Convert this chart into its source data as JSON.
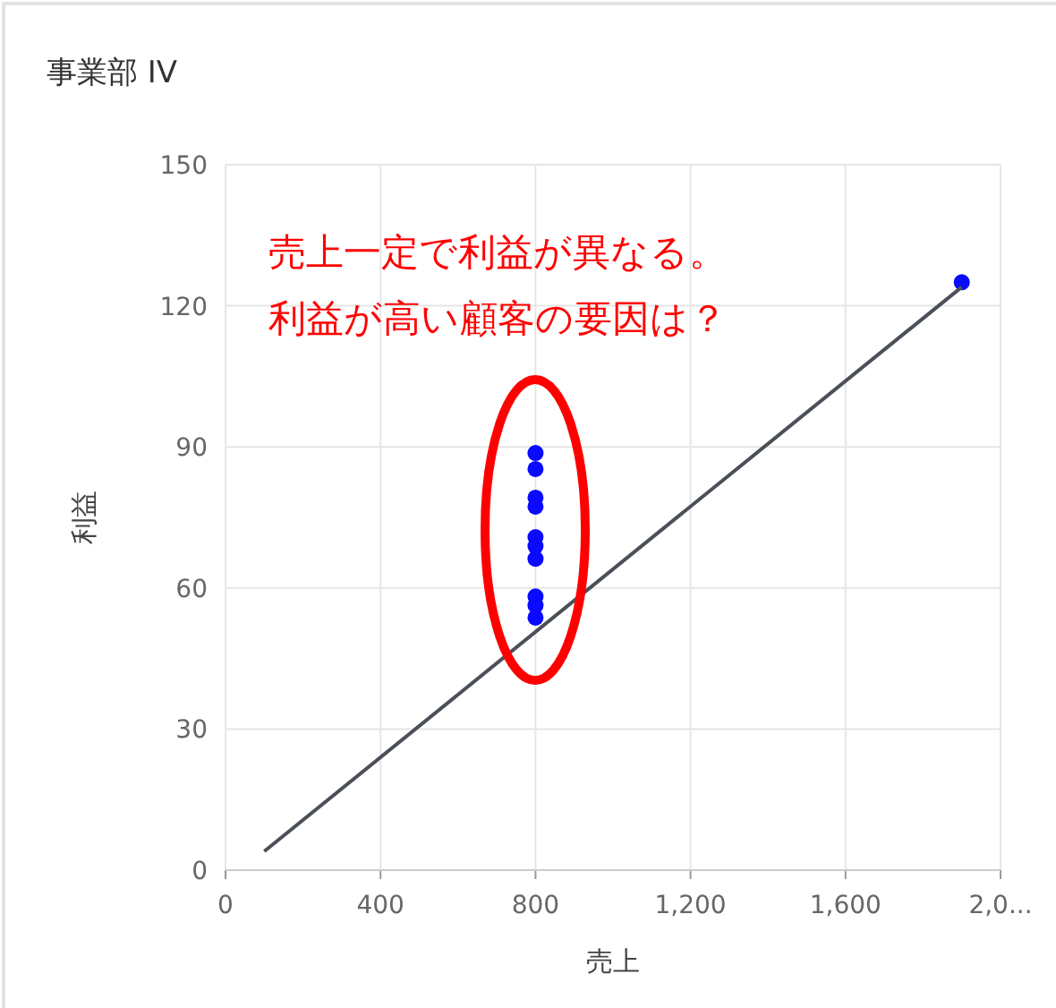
{
  "chart_data": {
    "type": "scatter",
    "title": "事業部 IV",
    "xlabel": "売上",
    "ylabel": "利益",
    "annotations": [
      "売上一定で利益が異なる。",
      "利益が高い顧客の要因は？"
    ],
    "series": [
      {
        "color": "#0a0aff",
        "x": [
          800,
          800,
          800,
          800,
          800,
          800,
          800,
          800,
          800,
          800,
          1900
        ],
        "values": [
          88.7,
          85.3,
          79.2,
          77.3,
          70.8,
          68.9,
          66.2,
          58.2,
          56.3,
          53.7,
          125
        ]
      },
      {
        "type": "line",
        "color": "#4b4f58",
        "marker": "none",
        "x": [
          100,
          1900
        ],
        "values": [
          4,
          124
        ]
      }
    ],
    "xlim": [
      0,
      2000
    ],
    "xticks": [
      0,
      400,
      800,
      {
        "value": 1200,
        "label": "1,200"
      },
      {
        "value": 1600,
        "label": "1,600"
      },
      {
        "value": 2000,
        "label": "2,0..."
      }
    ],
    "ylim": [
      0,
      150
    ],
    "yticks": [
      0,
      30,
      60,
      90,
      120,
      150
    ],
    "grid": true,
    "marker": "circle"
  }
}
